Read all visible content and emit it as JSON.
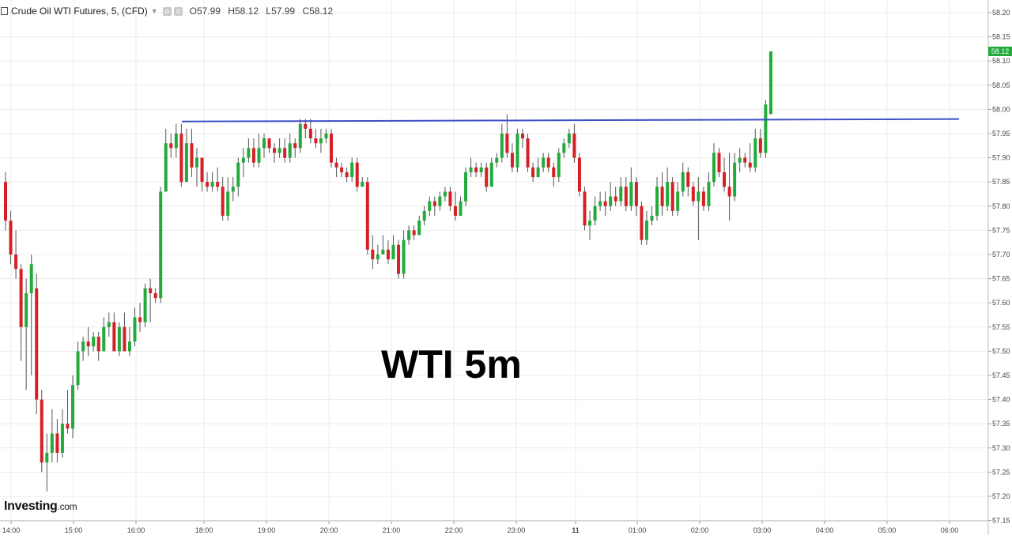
{
  "header": {
    "title": "Crude Oil WTI Futures, 5, (CFD)",
    "ohlc": [
      {
        "key": "O",
        "value": "57.99"
      },
      {
        "key": "H",
        "value": "58.12"
      },
      {
        "key": "L",
        "value": "57.99"
      },
      {
        "key": "C",
        "value": "58.12"
      }
    ]
  },
  "overlay_label": "WTI 5m",
  "logo": {
    "brand": "Investing",
    "suffix": ".com"
  },
  "last_price_badge": "58.12",
  "colors": {
    "up": "#22ab3b",
    "down": "#d42026",
    "resistance_line": "#3b4fc7",
    "grid": "#ececec",
    "badge": "#22ab3b"
  },
  "chart_data": {
    "type": "candlestick",
    "title": "Crude Oil WTI Futures, 5, (CFD)",
    "interval": "5m",
    "ylim": [
      57.15,
      58.2
    ],
    "y_ticks": [
      "58.20",
      "58.15",
      "58.10",
      "58.05",
      "58.00",
      "57.95",
      "57.90",
      "57.85",
      "57.80",
      "57.75",
      "57.70",
      "57.65",
      "57.60",
      "57.55",
      "57.50",
      "57.45",
      "57.40",
      "57.35",
      "57.30",
      "57.25",
      "57.20",
      "57.15"
    ],
    "x_ticks": [
      "14:00",
      "15:00",
      "16:00",
      "18:00",
      "19:00",
      "20:00",
      "21:00",
      "22:00",
      "23:00",
      "11",
      "01:00",
      "02:00",
      "03:00",
      "04:00",
      "05:00",
      "06:00"
    ],
    "grid": true,
    "resistance_line": {
      "start": 57.975,
      "end": 57.98
    },
    "candles": [
      [
        57.85,
        57.77,
        57.87,
        57.75
      ],
      [
        57.77,
        57.7,
        57.79,
        57.68
      ],
      [
        57.7,
        57.67,
        57.75,
        57.65
      ],
      [
        57.67,
        57.55,
        57.68,
        57.48
      ],
      [
        57.55,
        57.62,
        57.65,
        57.42
      ],
      [
        57.62,
        57.68,
        57.7,
        57.45
      ],
      [
        57.63,
        57.4,
        57.66,
        57.37
      ],
      [
        57.4,
        57.27,
        57.42,
        57.25
      ],
      [
        57.27,
        57.29,
        57.33,
        57.21
      ],
      [
        57.29,
        57.33,
        57.38,
        57.27
      ],
      [
        57.33,
        57.29,
        57.36,
        57.27
      ],
      [
        57.29,
        57.35,
        57.38,
        57.28
      ],
      [
        57.35,
        57.34,
        57.42,
        57.33
      ],
      [
        57.34,
        57.43,
        57.45,
        57.32
      ],
      [
        57.43,
        57.5,
        57.52,
        57.42
      ],
      [
        57.5,
        57.52,
        57.53,
        57.48
      ],
      [
        57.52,
        57.51,
        57.55,
        57.49
      ],
      [
        57.51,
        57.53,
        57.54,
        57.5
      ],
      [
        57.53,
        57.5,
        57.54,
        57.48
      ],
      [
        57.5,
        57.55,
        57.57,
        57.5
      ],
      [
        57.55,
        57.56,
        57.58,
        57.53
      ],
      [
        57.56,
        57.5,
        57.58,
        57.5
      ],
      [
        57.5,
        57.55,
        57.56,
        57.49
      ],
      [
        57.55,
        57.5,
        57.58,
        57.5
      ],
      [
        57.5,
        57.52,
        57.55,
        57.49
      ],
      [
        57.52,
        57.57,
        57.59,
        57.51
      ],
      [
        57.57,
        57.56,
        57.6,
        57.54
      ],
      [
        57.56,
        57.63,
        57.64,
        57.55
      ],
      [
        57.63,
        57.62,
        57.65,
        57.56
      ],
      [
        57.62,
        57.61,
        57.63,
        57.6
      ],
      [
        57.61,
        57.83,
        57.84,
        57.6
      ],
      [
        57.83,
        57.93,
        57.96,
        57.83
      ],
      [
        57.93,
        57.92,
        57.95,
        57.9
      ],
      [
        57.92,
        57.95,
        57.97,
        57.9
      ],
      [
        57.95,
        57.85,
        57.97,
        57.84
      ],
      [
        57.85,
        57.93,
        57.96,
        57.92
      ],
      [
        57.93,
        57.88,
        57.96,
        57.86
      ],
      [
        57.88,
        57.9,
        57.92,
        57.84
      ],
      [
        57.9,
        57.85,
        57.87,
        57.83
      ],
      [
        57.85,
        57.84,
        57.87,
        57.83
      ],
      [
        57.84,
        57.85,
        57.87,
        57.83
      ],
      [
        57.85,
        57.84,
        57.88,
        57.83
      ],
      [
        57.84,
        57.78,
        57.86,
        57.77
      ],
      [
        57.78,
        57.83,
        57.86,
        57.77
      ],
      [
        57.83,
        57.84,
        57.86,
        57.81
      ],
      [
        57.84,
        57.89,
        57.9,
        57.82
      ],
      [
        57.89,
        57.9,
        57.92,
        57.86
      ],
      [
        57.9,
        57.92,
        57.94,
        57.89
      ],
      [
        57.92,
        57.89,
        57.94,
        57.88
      ],
      [
        57.89,
        57.92,
        57.95,
        57.88
      ],
      [
        57.92,
        57.94,
        57.95,
        57.9
      ],
      [
        57.94,
        57.92,
        57.94,
        57.91
      ],
      [
        57.92,
        57.91,
        57.93,
        57.89
      ],
      [
        57.91,
        57.92,
        57.94,
        57.9
      ],
      [
        57.92,
        57.9,
        57.94,
        57.89
      ],
      [
        57.9,
        57.93,
        57.95,
        57.89
      ],
      [
        57.93,
        57.92,
        57.94,
        57.9
      ],
      [
        57.92,
        57.97,
        57.98,
        57.91
      ],
      [
        57.97,
        57.96,
        57.98,
        57.94
      ],
      [
        57.96,
        57.94,
        57.98,
        57.93
      ],
      [
        57.94,
        57.93,
        57.96,
        57.92
      ],
      [
        57.93,
        57.94,
        57.96,
        57.91
      ],
      [
        57.94,
        57.95,
        57.96,
        57.93
      ],
      [
        57.95,
        57.89,
        57.96,
        57.88
      ],
      [
        57.89,
        57.88,
        57.9,
        57.86
      ],
      [
        57.88,
        57.87,
        57.89,
        57.86
      ],
      [
        57.87,
        57.86,
        57.88,
        57.85
      ],
      [
        57.86,
        57.89,
        57.9,
        57.85
      ],
      [
        57.89,
        57.84,
        57.9,
        57.83
      ],
      [
        57.84,
        57.85,
        57.86,
        57.84
      ],
      [
        57.85,
        57.71,
        57.86,
        57.7
      ],
      [
        57.71,
        57.69,
        57.74,
        57.67
      ],
      [
        57.69,
        57.7,
        57.72,
        57.68
      ],
      [
        57.7,
        57.71,
        57.74,
        57.7
      ],
      [
        57.71,
        57.69,
        57.73,
        57.68
      ],
      [
        57.69,
        57.72,
        57.74,
        57.69
      ],
      [
        57.72,
        57.66,
        57.73,
        57.65
      ],
      [
        57.66,
        57.73,
        57.75,
        57.65
      ],
      [
        57.73,
        57.75,
        57.76,
        57.72
      ],
      [
        57.75,
        57.74,
        57.76,
        57.73
      ],
      [
        57.74,
        57.77,
        57.78,
        57.74
      ],
      [
        57.77,
        57.79,
        57.8,
        57.76
      ],
      [
        57.79,
        57.81,
        57.82,
        57.78
      ],
      [
        57.81,
        57.8,
        57.82,
        57.78
      ],
      [
        57.8,
        57.82,
        57.83,
        57.79
      ],
      [
        57.82,
        57.83,
        57.84,
        57.81
      ],
      [
        57.83,
        57.8,
        57.84,
        57.79
      ],
      [
        57.8,
        57.78,
        57.83,
        57.77
      ],
      [
        57.78,
        57.81,
        57.82,
        57.78
      ],
      [
        57.81,
        57.87,
        57.88,
        57.8
      ],
      [
        57.87,
        57.88,
        57.9,
        57.86
      ],
      [
        57.88,
        57.87,
        57.89,
        57.86
      ],
      [
        57.87,
        57.88,
        57.89,
        57.86
      ],
      [
        57.88,
        57.84,
        57.89,
        57.83
      ],
      [
        57.84,
        57.89,
        57.9,
        57.84
      ],
      [
        57.89,
        57.9,
        57.91,
        57.88
      ],
      [
        57.9,
        57.95,
        57.97,
        57.89
      ],
      [
        57.95,
        57.91,
        57.99,
        57.9
      ],
      [
        57.91,
        57.88,
        57.93,
        57.87
      ],
      [
        57.88,
        57.95,
        57.96,
        57.87
      ],
      [
        57.95,
        57.94,
        57.96,
        57.92
      ],
      [
        57.94,
        57.88,
        57.95,
        57.87
      ],
      [
        57.88,
        57.86,
        57.89,
        57.85
      ],
      [
        57.86,
        57.88,
        57.9,
        57.86
      ],
      [
        57.88,
        57.9,
        57.91,
        57.87
      ],
      [
        57.9,
        57.88,
        57.91,
        57.87
      ],
      [
        57.88,
        57.86,
        57.89,
        57.84
      ],
      [
        57.86,
        57.91,
        57.92,
        57.85
      ],
      [
        57.91,
        57.93,
        57.94,
        57.9
      ],
      [
        57.93,
        57.95,
        57.96,
        57.92
      ],
      [
        57.95,
        57.9,
        57.97,
        57.89
      ],
      [
        57.9,
        57.83,
        57.91,
        57.82
      ],
      [
        57.83,
        57.76,
        57.84,
        57.75
      ],
      [
        57.76,
        57.77,
        57.79,
        57.73
      ],
      [
        57.77,
        57.8,
        57.82,
        57.76
      ],
      [
        57.8,
        57.81,
        57.83,
        57.79
      ],
      [
        57.81,
        57.8,
        57.83,
        57.78
      ],
      [
        57.8,
        57.82,
        57.85,
        57.79
      ],
      [
        57.82,
        57.81,
        57.84,
        57.8
      ],
      [
        57.81,
        57.84,
        57.86,
        57.8
      ],
      [
        57.84,
        57.8,
        57.86,
        57.79
      ],
      [
        57.8,
        57.85,
        57.88,
        57.79
      ],
      [
        57.85,
        57.8,
        57.86,
        57.78
      ],
      [
        57.8,
        57.73,
        57.81,
        57.72
      ],
      [
        57.73,
        57.77,
        57.79,
        57.72
      ],
      [
        57.77,
        57.78,
        57.8,
        57.76
      ],
      [
        57.78,
        57.84,
        57.86,
        57.77
      ],
      [
        57.84,
        57.8,
        57.87,
        57.78
      ],
      [
        57.8,
        57.85,
        57.88,
        57.79
      ],
      [
        57.85,
        57.79,
        57.86,
        57.78
      ],
      [
        57.79,
        57.83,
        57.85,
        57.78
      ],
      [
        57.83,
        57.87,
        57.89,
        57.82
      ],
      [
        57.87,
        57.84,
        57.88,
        57.82
      ],
      [
        57.84,
        57.81,
        57.85,
        57.8
      ],
      [
        57.81,
        57.83,
        57.86,
        57.73
      ],
      [
        57.83,
        57.8,
        57.84,
        57.79
      ],
      [
        57.8,
        57.85,
        57.87,
        57.79
      ],
      [
        57.85,
        57.91,
        57.93,
        57.84
      ],
      [
        57.91,
        57.87,
        57.92,
        57.86
      ],
      [
        57.87,
        57.84,
        57.9,
        57.83
      ],
      [
        57.84,
        57.82,
        57.91,
        57.77
      ],
      [
        57.82,
        57.89,
        57.91,
        57.81
      ],
      [
        57.89,
        57.9,
        57.92,
        57.87
      ],
      [
        57.9,
        57.89,
        57.91,
        57.88
      ],
      [
        57.89,
        57.88,
        57.93,
        57.87
      ],
      [
        57.88,
        57.94,
        57.96,
        57.87
      ],
      [
        57.94,
        57.91,
        57.96,
        57.9
      ],
      [
        57.91,
        58.01,
        58.02,
        57.9
      ],
      [
        57.99,
        58.12,
        58.12,
        57.99
      ]
    ]
  }
}
